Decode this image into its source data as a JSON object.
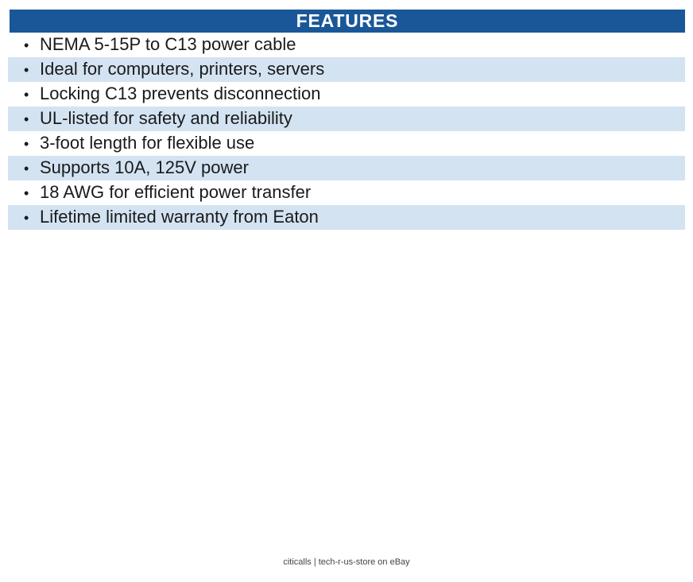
{
  "header": {
    "title": "FEATURES",
    "background_color": "#1A5798",
    "text_color": "#FFFFFF"
  },
  "features": {
    "bullet_glyph": "•",
    "stripe_color": "#D3E3F2",
    "items": [
      "NEMA 5-15P to C13 power cable",
      "Ideal for computers, printers, servers",
      "Locking C13 prevents disconnection",
      "UL-listed for safety and reliability",
      "3-foot length for flexible use",
      "Supports 10A, 125V power",
      "18 AWG for efficient power transfer",
      "Lifetime limited warranty from Eaton"
    ]
  },
  "footer": {
    "text": "citicalls | tech-r-us-store on eBay"
  }
}
